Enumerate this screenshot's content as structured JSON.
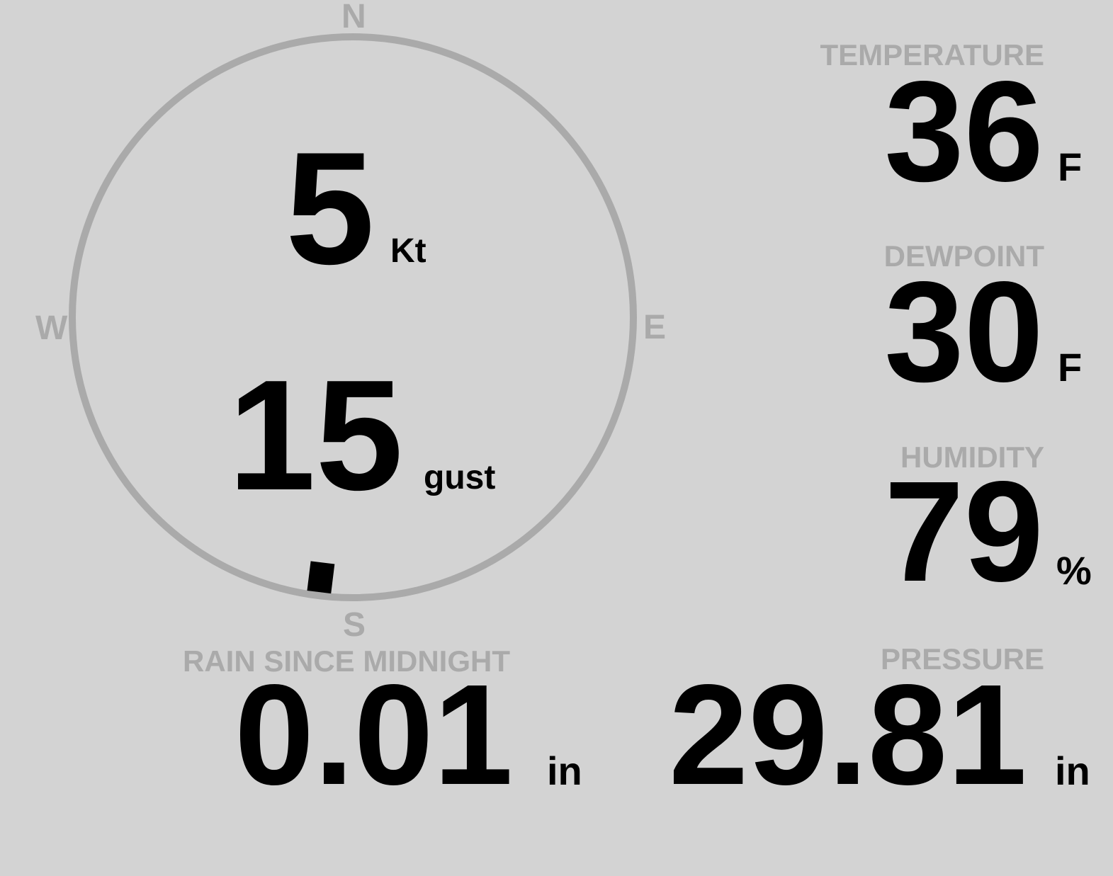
{
  "colors": {
    "background": "#d3d3d3",
    "label": "#aaaaaa",
    "value": "#000000",
    "dial": "#aaaaaa",
    "marker": "#000000"
  },
  "compass": {
    "north": "N",
    "south": "S",
    "east": "E",
    "west": "W",
    "wind_direction_deg": 187
  },
  "wind": {
    "speed": "5",
    "speed_unit": "Kt",
    "gust": "15",
    "gust_unit": "gust"
  },
  "temperature": {
    "label": "TEMPERATURE",
    "value": "36",
    "unit": "F"
  },
  "dewpoint": {
    "label": "DEWPOINT",
    "value": "30",
    "unit": "F"
  },
  "humidity": {
    "label": "HUMIDITY",
    "value": "79",
    "unit": "%"
  },
  "pressure": {
    "label": "PRESSURE",
    "value": "29.81",
    "unit": "in"
  },
  "rain": {
    "label": "RAIN SINCE MIDNIGHT",
    "value": "0.01",
    "unit": "in"
  }
}
